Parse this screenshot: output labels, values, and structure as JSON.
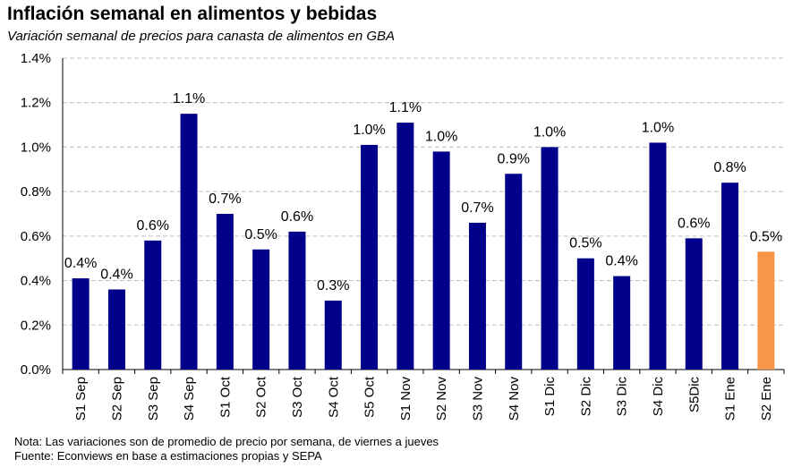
{
  "title": "Inflación semanal en alimentos y bebidas",
  "subtitle": "Variación semanal de precios para canasta de alimentos en GBA",
  "notes": [
    "Nota: Las variaciones son de promedio de precio por semana, de viernes a jueves",
    "Fuente: Econviews en base a estimaciones propias  y SEPA"
  ],
  "colors": {
    "bar": "#00008B",
    "highlight": "#F79646",
    "grid": "#BFBFBF"
  },
  "chart_data": {
    "type": "bar",
    "title": "Inflación semanal en alimentos y bebidas",
    "subtitle": "Variación semanal de precios para canasta de alimentos en GBA",
    "categories": [
      "S1 Sep",
      "S2 Sep",
      "S3 Sep",
      "S4 Sep",
      "S1 Oct",
      "S2 Oct",
      "S3 Oct",
      "S4 Oct",
      "S5 Oct",
      "S1 Nov",
      "S2 Nov",
      "S3 Nov",
      "S4 Nov",
      "S1 Dic",
      "S2 Dic",
      "S3 Dic",
      "S4 Dic",
      "S5Dic",
      "S1 Ene",
      "S2 Ene"
    ],
    "values": [
      0.41,
      0.36,
      0.58,
      1.15,
      0.7,
      0.54,
      0.62,
      0.31,
      1.01,
      1.11,
      0.98,
      0.66,
      0.88,
      1.0,
      0.5,
      0.42,
      1.02,
      0.59,
      0.84,
      0.53
    ],
    "labels": [
      "0.4%",
      "0.4%",
      "0.6%",
      "1.1%",
      "0.7%",
      "0.5%",
      "0.6%",
      "0.3%",
      "1.0%",
      "1.1%",
      "1.0%",
      "0.7%",
      "0.9%",
      "1.0%",
      "0.5%",
      "0.4%",
      "1.0%",
      "0.6%",
      "0.8%",
      "0.5%"
    ],
    "highlight_index": 19,
    "ylim": [
      0,
      1.4
    ],
    "yticks": [
      "0.0%",
      "0.2%",
      "0.4%",
      "0.6%",
      "0.8%",
      "1.0%",
      "1.2%",
      "1.4%"
    ],
    "xlabel": "",
    "ylabel": "",
    "grid": true,
    "legend": "none"
  }
}
